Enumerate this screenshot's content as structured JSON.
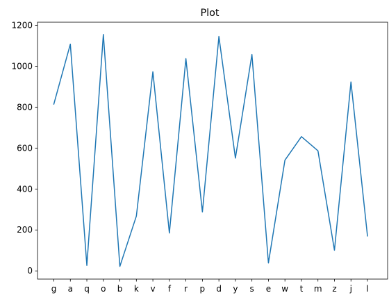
{
  "chart_data": {
    "type": "line",
    "title": "Plot",
    "xlabel": "",
    "ylabel": "",
    "categories": [
      "g",
      "a",
      "q",
      "o",
      "b",
      "k",
      "v",
      "f",
      "r",
      "p",
      "d",
      "y",
      "s",
      "e",
      "w",
      "t",
      "m",
      "z",
      "j",
      "l"
    ],
    "series": [
      {
        "values": [
          815,
          1108,
          27,
          1155,
          22,
          268,
          973,
          185,
          1037,
          288,
          1145,
          551,
          1057,
          39,
          541,
          656,
          587,
          101,
          923,
          171
        ],
        "color": "#1f77b4"
      }
    ],
    "ylim": [
      -40,
      1215
    ],
    "yticks": [
      0,
      200,
      400,
      600,
      800,
      1000,
      1200
    ],
    "grid": false,
    "legend": "none"
  }
}
